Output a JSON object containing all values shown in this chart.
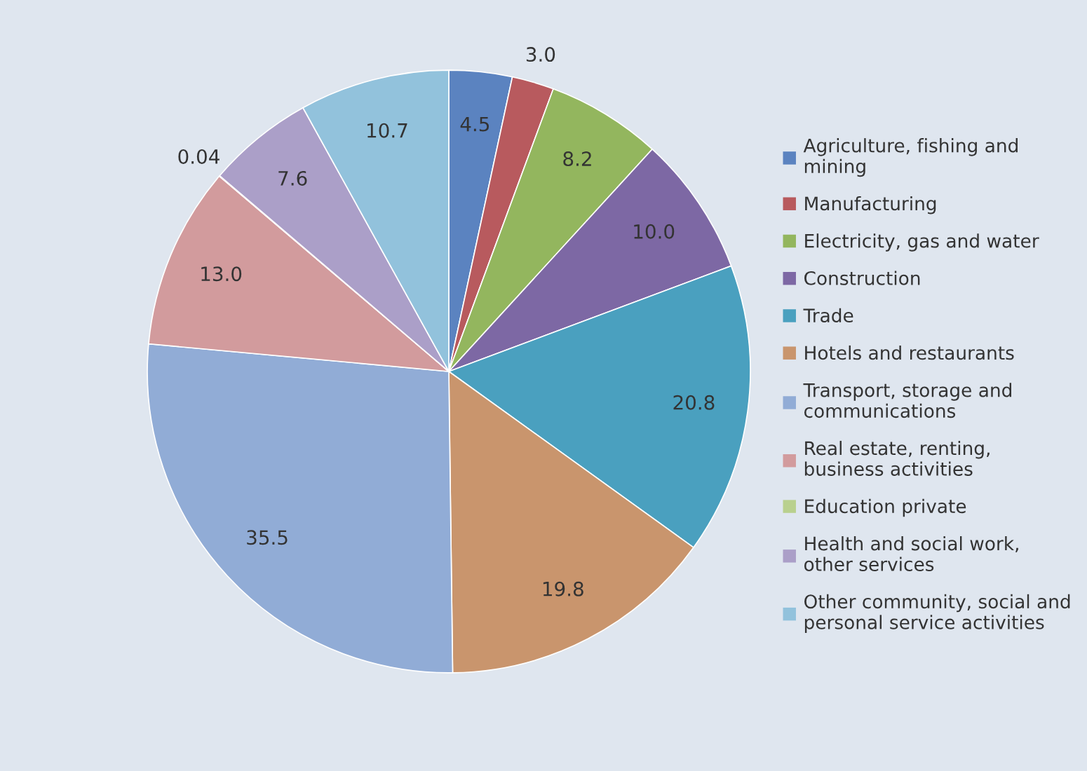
{
  "chart_data": {
    "type": "pie",
    "categories": [
      "Agriculture, fishing and mining",
      "Manufacturing",
      "Electricity, gas and water",
      "Construction",
      "Trade",
      "Hotels and restaurants",
      "Transport, storage and communications",
      "Real estate, renting, business activities",
      "Education private",
      "Health and social work, other services",
      "Other community, social and personal service activities"
    ],
    "values": [
      4.5,
      3.0,
      8.2,
      10.0,
      20.8,
      19.8,
      35.5,
      13.0,
      0.04,
      7.6,
      10.7
    ],
    "colors": [
      "#5b83c0",
      "#b85a5e",
      "#93b65e",
      "#7d68a4",
      "#4aa0bf",
      "#c9956d",
      "#91acd6",
      "#d29b9d",
      "#b9d08e",
      "#ab9fc8",
      "#92c2dc"
    ],
    "value_labels": [
      "4.5",
      "3.0",
      "8.2",
      "10.0",
      "20.8",
      "19.8",
      "35.5",
      "13.0",
      "0.04",
      "7.6",
      "10.7"
    ],
    "legend": "right"
  }
}
